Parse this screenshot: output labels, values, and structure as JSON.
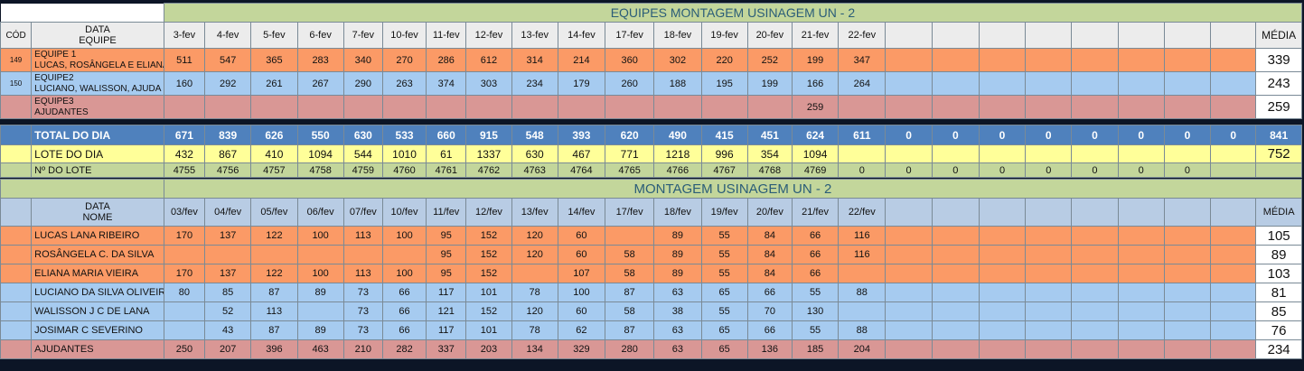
{
  "top": {
    "title": "EQUIPES MONTAGEM USINAGEM UN - 2",
    "header": {
      "cod": "CÓD",
      "data_label": "DATA",
      "equipe_label": "EQUIPE",
      "media": "MÉDIA"
    },
    "dates": [
      "3-fev",
      "4-fev",
      "5-fev",
      "6-fev",
      "7-fev",
      "10-fev",
      "11-fev",
      "12-fev",
      "13-fev",
      "14-fev",
      "17-fev",
      "18-fev",
      "19-fev",
      "20-fev",
      "21-fev",
      "22-fev",
      "",
      "",
      "",
      "",
      "",
      "",
      "",
      ""
    ],
    "teams": [
      {
        "cod": "149",
        "name1": "EQUIPE 1",
        "name2": "LUCAS, ROSÂNGELA E ELIANA",
        "values": [
          "511",
          "547",
          "365",
          "283",
          "340",
          "270",
          "286",
          "612",
          "314",
          "214",
          "360",
          "302",
          "220",
          "252",
          "199",
          "347",
          "",
          "",
          "",
          "",
          "",
          "",
          "",
          ""
        ],
        "media": "339"
      },
      {
        "cod": "150",
        "name1": "EQUIPE2",
        "name2": "LUCIANO, WALISSON, AJUDA",
        "values": [
          "160",
          "292",
          "261",
          "267",
          "290",
          "263",
          "374",
          "303",
          "234",
          "179",
          "260",
          "188",
          "195",
          "199",
          "166",
          "264",
          "",
          "",
          "",
          "",
          "",
          "",
          "",
          ""
        ],
        "media": "243"
      },
      {
        "cod": "",
        "name1": "EQUIPE3",
        "name2": "AJUDANTES",
        "values": [
          "",
          "",
          "",
          "",
          "",
          "",
          "",
          "",
          "",
          "",
          "",
          "",
          "",
          "",
          "259",
          "",
          "",
          "",
          "",
          "",
          "",
          "",
          "",
          ""
        ],
        "media": "259"
      }
    ],
    "total": {
      "label": "TOTAL DO DIA",
      "values": [
        "671",
        "839",
        "626",
        "550",
        "630",
        "533",
        "660",
        "915",
        "548",
        "393",
        "620",
        "490",
        "415",
        "451",
        "624",
        "611",
        "0",
        "0",
        "0",
        "0",
        "0",
        "0",
        "0",
        "0"
      ],
      "media": "841"
    },
    "lote": {
      "label": "LOTE DO DIA",
      "values": [
        "432",
        "867",
        "410",
        "1094",
        "544",
        "1010",
        "61",
        "1337",
        "630",
        "467",
        "771",
        "1218",
        "996",
        "354",
        "1094",
        "",
        "",
        "",
        "",
        "",
        "",
        "",
        "",
        ""
      ],
      "media": "752"
    },
    "nlote": {
      "label": "Nº DO LOTE",
      "values": [
        "4755",
        "4756",
        "4757",
        "4758",
        "4759",
        "4760",
        "4761",
        "4762",
        "4763",
        "4764",
        "4765",
        "4766",
        "4767",
        "4768",
        "4769",
        "0",
        "0",
        "0",
        "0",
        "0",
        "0",
        "0",
        "0",
        ""
      ],
      "media": ""
    }
  },
  "bottom": {
    "title": "MONTAGEM USINAGEM UN - 2",
    "header": {
      "data_label": "DATA",
      "nome_label": "NOME",
      "media": "MÉDIA"
    },
    "dates": [
      "03/fev",
      "04/fev",
      "05/fev",
      "06/fev",
      "07/fev",
      "10/fev",
      "11/fev",
      "12/fev",
      "13/fev",
      "14/fev",
      "17/fev",
      "18/fev",
      "19/fev",
      "20/fev",
      "21/fev",
      "22/fev",
      "",
      "",
      "",
      "",
      "",
      "",
      "",
      ""
    ],
    "people": [
      {
        "name": "LUCAS LANA RIBEIRO",
        "color": "orange",
        "values": [
          "170",
          "137",
          "122",
          "100",
          "113",
          "100",
          "95",
          "152",
          "120",
          "60",
          "",
          "89",
          "55",
          "84",
          "66",
          "116",
          "",
          "",
          "",
          "",
          "",
          "",
          "",
          ""
        ],
        "media": "105"
      },
      {
        "name": "ROSÂNGELA C. DA SILVA",
        "color": "orange",
        "values": [
          "",
          "",
          "",
          "",
          "",
          "",
          "95",
          "152",
          "120",
          "60",
          "58",
          "89",
          "55",
          "84",
          "66",
          "116",
          "",
          "",
          "",
          "",
          "",
          "",
          "",
          ""
        ],
        "media": "89"
      },
      {
        "name": "ELIANA MARIA VIEIRA",
        "color": "orange",
        "values": [
          "170",
          "137",
          "122",
          "100",
          "113",
          "100",
          "95",
          "152",
          "",
          "107",
          "58",
          "89",
          "55",
          "84",
          "66",
          "",
          "",
          "",
          "",
          "",
          "",
          "",
          "",
          ""
        ],
        "media": "103"
      },
      {
        "name": "LUCIANO DA SILVA OLIVEIR.",
        "color": "blue",
        "values": [
          "80",
          "85",
          "87",
          "89",
          "73",
          "66",
          "117",
          "101",
          "78",
          "100",
          "87",
          "63",
          "65",
          "66",
          "55",
          "88",
          "",
          "",
          "",
          "",
          "",
          "",
          "",
          ""
        ],
        "media": "81"
      },
      {
        "name": "WALISSON J C DE LANA",
        "color": "blue",
        "values": [
          "",
          "52",
          "113",
          "",
          "73",
          "66",
          "121",
          "152",
          "120",
          "60",
          "58",
          "38",
          "55",
          "70",
          "130",
          "",
          "",
          "",
          "",
          "",
          "",
          "",
          "",
          ""
        ],
        "media": "85"
      },
      {
        "name": "JOSIMAR C SEVERINO",
        "color": "blue",
        "values": [
          "",
          "43",
          "87",
          "89",
          "73",
          "66",
          "117",
          "101",
          "78",
          "62",
          "87",
          "63",
          "65",
          "66",
          "55",
          "88",
          "",
          "",
          "",
          "",
          "",
          "",
          "",
          ""
        ],
        "media": "76"
      },
      {
        "name": "AJUDANTES",
        "color": "pink",
        "values": [
          "250",
          "207",
          "396",
          "463",
          "210",
          "282",
          "337",
          "203",
          "134",
          "329",
          "280",
          "63",
          "65",
          "136",
          "185",
          "204",
          "",
          "",
          "",
          "",
          "",
          "",
          "",
          ""
        ],
        "media": "234"
      }
    ]
  }
}
